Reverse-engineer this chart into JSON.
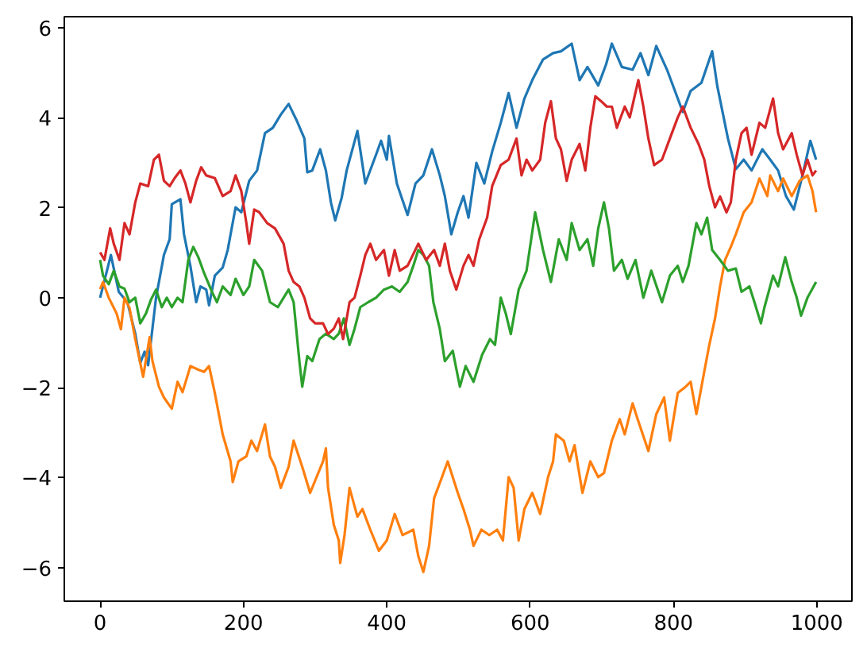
{
  "chart_data": {
    "type": "line",
    "xlim": [
      -50,
      1049
    ],
    "ylim": [
      -6.75,
      6.25
    ],
    "xticks": [
      0,
      200,
      400,
      600,
      800,
      1000
    ],
    "yticks": [
      {
        "value": -6,
        "label": "−6"
      },
      {
        "value": -4,
        "label": "−4"
      },
      {
        "value": -2,
        "label": "−2"
      },
      0,
      2,
      4,
      6
    ],
    "grid": false,
    "line_style": "solid",
    "series": [
      {
        "color": "#1f77b4",
        "x": [
          0,
          15,
          26,
          38,
          49,
          56,
          62,
          67,
          78,
          89,
          97,
          100,
          112,
          117,
          126,
          134,
          140,
          148,
          152,
          160,
          171,
          178,
          189,
          197,
          208,
          219,
          230,
          241,
          252,
          263,
          274,
          285,
          289,
          296,
          307,
          315,
          322,
          328,
          337,
          344,
          359,
          370,
          385,
          392,
          400,
          403,
          414,
          429,
          440,
          451,
          463,
          474,
          481,
          490,
          499,
          507,
          514,
          525,
          536,
          547,
          559,
          570,
          581,
          592,
          603,
          618,
          632,
          643,
          658,
          669,
          680,
          695,
          706,
          714,
          728,
          743,
          754,
          765,
          776,
          791,
          806,
          813,
          824,
          839,
          854,
          861,
          876,
          887,
          898,
          909,
          924,
          935,
          946,
          957,
          968,
          980,
          991,
          999
        ],
        "values": [
          0.0,
          0.95,
          0.13,
          -0.1,
          -0.8,
          -1.45,
          -1.2,
          -1.5,
          0.0,
          0.95,
          1.3,
          2.08,
          2.19,
          1.41,
          0.7,
          -0.1,
          0.25,
          0.18,
          -0.17,
          0.49,
          0.67,
          1.06,
          2.01,
          1.9,
          2.6,
          2.83,
          3.66,
          3.78,
          4.07,
          4.31,
          3.95,
          3.54,
          2.79,
          2.83,
          3.3,
          2.83,
          2.12,
          1.72,
          2.22,
          2.83,
          3.71,
          2.54,
          3.18,
          3.49,
          3.07,
          3.6,
          2.54,
          1.84,
          2.54,
          2.72,
          3.3,
          2.72,
          2.26,
          1.41,
          1.9,
          2.26,
          1.78,
          3.0,
          2.54,
          3.25,
          3.89,
          4.55,
          3.78,
          4.43,
          4.84,
          5.3,
          5.44,
          5.48,
          5.65,
          4.84,
          5.13,
          4.72,
          5.19,
          5.65,
          5.13,
          5.07,
          5.44,
          4.95,
          5.6,
          5.07,
          4.43,
          4.13,
          4.6,
          4.78,
          5.48,
          4.72,
          3.54,
          2.86,
          3.07,
          2.83,
          3.3,
          3.07,
          2.83,
          2.26,
          1.96,
          2.72,
          3.49,
          3.07
        ]
      },
      {
        "color": "#ff7f0e",
        "x": [
          0,
          4,
          12,
          23,
          29,
          34,
          41,
          49,
          60,
          69,
          73,
          82,
          89,
          100,
          108,
          115,
          126,
          137,
          145,
          152,
          160,
          171,
          182,
          185,
          193,
          204,
          211,
          219,
          230,
          237,
          244,
          252,
          263,
          270,
          282,
          293,
          302,
          311,
          315,
          318,
          326,
          333,
          335,
          341,
          348,
          359,
          366,
          377,
          389,
          400,
          411,
          422,
          437,
          444,
          451,
          459,
          466,
          477,
          485,
          492,
          499,
          507,
          516,
          521,
          532,
          543,
          554,
          562,
          570,
          577,
          584,
          592,
          603,
          614,
          625,
          632,
          636,
          647,
          655,
          662,
          673,
          684,
          695,
          703,
          714,
          725,
          732,
          743,
          750,
          765,
          776,
          787,
          795,
          806,
          817,
          824,
          832,
          843,
          850,
          858,
          865,
          872,
          880,
          887,
          898,
          909,
          920,
          931,
          935,
          946,
          953,
          965,
          976,
          987,
          994,
          999
        ],
        "values": [
          0.19,
          0.35,
          0.0,
          -0.35,
          -0.7,
          0.0,
          -0.23,
          -0.92,
          -1.76,
          -0.88,
          -1.41,
          -1.98,
          -2.22,
          -2.47,
          -1.87,
          -2.1,
          -1.52,
          -1.6,
          -1.65,
          -1.52,
          -2.12,
          -3.04,
          -3.64,
          -4.1,
          -3.64,
          -3.53,
          -3.18,
          -3.41,
          -2.82,
          -3.53,
          -3.76,
          -4.23,
          -3.76,
          -3.18,
          -3.76,
          -4.34,
          -3.99,
          -3.64,
          -3.35,
          -4.23,
          -5.05,
          -5.4,
          -5.9,
          -5.28,
          -4.23,
          -4.87,
          -4.7,
          -5.16,
          -5.63,
          -5.4,
          -4.81,
          -5.28,
          -5.16,
          -5.75,
          -6.1,
          -5.52,
          -4.46,
          -3.99,
          -3.64,
          -3.99,
          -4.34,
          -4.7,
          -5.16,
          -5.52,
          -5.16,
          -5.28,
          -5.16,
          -5.4,
          -3.99,
          -4.23,
          -5.4,
          -4.7,
          -4.34,
          -4.81,
          -3.99,
          -3.64,
          -3.04,
          -3.18,
          -3.64,
          -3.28,
          -4.34,
          -3.64,
          -3.99,
          -3.9,
          -3.18,
          -2.7,
          -3.04,
          -2.35,
          -2.7,
          -3.41,
          -2.59,
          -2.22,
          -3.18,
          -2.12,
          -1.98,
          -1.87,
          -2.59,
          -1.64,
          -1.05,
          -0.46,
          0.25,
          0.84,
          1.13,
          1.41,
          1.9,
          2.12,
          2.65,
          2.26,
          2.72,
          2.37,
          2.65,
          2.26,
          2.6,
          2.72,
          2.37,
          1.9
        ]
      },
      {
        "color": "#2ca02c",
        "x": [
          0,
          4,
          12,
          19,
          27,
          34,
          41,
          49,
          56,
          64,
          71,
          78,
          86,
          93,
          100,
          108,
          115,
          123,
          130,
          137,
          145,
          156,
          163,
          171,
          182,
          189,
          200,
          208,
          215,
          226,
          237,
          248,
          256,
          263,
          270,
          278,
          282,
          289,
          296,
          306,
          315,
          326,
          333,
          340,
          348,
          355,
          363,
          374,
          385,
          396,
          407,
          418,
          429,
          437,
          444,
          451,
          459,
          465,
          474,
          481,
          492,
          502,
          510,
          521,
          533,
          544,
          551,
          559,
          566,
          573,
          584,
          595,
          607,
          618,
          629,
          640,
          651,
          658,
          669,
          680,
          688,
          695,
          703,
          710,
          717,
          728,
          736,
          747,
          758,
          769,
          784,
          795,
          806,
          813,
          821,
          832,
          839,
          847,
          854,
          865,
          876,
          887,
          895,
          906,
          913,
          922,
          927,
          939,
          946,
          956,
          965,
          972,
          978,
          987,
          999
        ],
        "values": [
          0.84,
          0.49,
          0.3,
          0.6,
          0.25,
          0.2,
          -0.1,
          0.0,
          -0.57,
          -0.35,
          -0.04,
          0.18,
          -0.21,
          0.0,
          -0.21,
          0.0,
          -0.1,
          0.84,
          1.13,
          0.9,
          0.55,
          0.13,
          -0.1,
          0.25,
          0.06,
          0.42,
          0.06,
          0.25,
          0.84,
          0.6,
          -0.1,
          -0.21,
          0.0,
          0.18,
          -0.1,
          -1.41,
          -1.98,
          -1.3,
          -1.41,
          -0.92,
          -0.8,
          -0.92,
          -0.8,
          -0.46,
          -1.05,
          -0.69,
          -0.21,
          -0.1,
          0.0,
          0.18,
          0.25,
          0.13,
          0.35,
          0.71,
          1.06,
          0.95,
          0.71,
          -0.1,
          -0.7,
          -1.41,
          -1.18,
          -1.98,
          -1.52,
          -1.87,
          -1.27,
          -0.92,
          -1.05,
          0.0,
          -0.35,
          -0.81,
          0.18,
          0.6,
          1.9,
          1.06,
          0.35,
          1.3,
          0.84,
          1.66,
          1.06,
          1.3,
          0.71,
          1.54,
          2.12,
          1.54,
          0.6,
          0.84,
          0.42,
          0.84,
          0.0,
          0.6,
          -0.1,
          0.49,
          0.71,
          0.35,
          0.71,
          1.66,
          1.41,
          1.78,
          1.06,
          0.84,
          0.6,
          0.65,
          0.13,
          0.25,
          -0.1,
          -0.57,
          -0.21,
          0.49,
          0.25,
          0.9,
          0.35,
          0.0,
          -0.4,
          0.0,
          0.35
        ]
      },
      {
        "color": "#d62728",
        "x": [
          0,
          6,
          14,
          19,
          27,
          34,
          41,
          49,
          56,
          67,
          75,
          82,
          89,
          97,
          104,
          112,
          119,
          126,
          134,
          141,
          148,
          160,
          171,
          182,
          189,
          197,
          204,
          208,
          215,
          222,
          233,
          244,
          256,
          263,
          270,
          278,
          285,
          293,
          300,
          311,
          318,
          326,
          333,
          339,
          348,
          355,
          363,
          370,
          377,
          385,
          396,
          403,
          411,
          418,
          429,
          444,
          455,
          466,
          474,
          481,
          488,
          497,
          507,
          514,
          521,
          529,
          540,
          547,
          559,
          570,
          581,
          588,
          595,
          603,
          614,
          621,
          629,
          636,
          643,
          651,
          658,
          669,
          677,
          684,
          691,
          699,
          707,
          714,
          721,
          732,
          739,
          751,
          758,
          765,
          773,
          784,
          795,
          806,
          813,
          824,
          835,
          843,
          850,
          858,
          865,
          874,
          880,
          887,
          895,
          902,
          909,
          920,
          928,
          939,
          946,
          953,
          965,
          972,
          980,
          987,
          994,
          999
        ],
        "values": [
          1.01,
          0.84,
          1.54,
          1.2,
          0.84,
          1.66,
          1.41,
          2.12,
          2.54,
          2.48,
          3.07,
          3.18,
          2.6,
          2.48,
          2.66,
          2.83,
          2.54,
          2.12,
          2.6,
          2.9,
          2.72,
          2.66,
          2.26,
          2.37,
          2.72,
          2.37,
          1.66,
          1.2,
          1.96,
          1.9,
          1.66,
          1.54,
          1.2,
          0.6,
          0.35,
          0.25,
          0.0,
          -0.46,
          -0.57,
          -0.57,
          -0.81,
          -0.69,
          -0.46,
          -0.92,
          -0.1,
          0.0,
          0.49,
          0.95,
          1.2,
          0.84,
          1.06,
          0.49,
          1.06,
          0.6,
          0.71,
          1.2,
          0.84,
          1.06,
          0.71,
          1.2,
          0.6,
          0.18,
          0.71,
          0.95,
          0.71,
          1.3,
          1.78,
          2.48,
          2.95,
          3.07,
          3.54,
          2.72,
          3.07,
          2.83,
          3.07,
          3.89,
          4.37,
          3.54,
          3.3,
          2.6,
          3.07,
          3.42,
          2.83,
          3.78,
          4.48,
          4.37,
          4.25,
          4.25,
          3.78,
          4.25,
          4.01,
          4.84,
          4.25,
          3.54,
          2.95,
          3.07,
          3.54,
          4.01,
          4.25,
          3.78,
          3.42,
          3.07,
          2.48,
          2.01,
          2.25,
          1.9,
          2.12,
          3.07,
          3.66,
          3.78,
          3.18,
          3.89,
          3.78,
          4.43,
          3.66,
          3.3,
          3.66,
          3.18,
          2.72,
          3.07,
          2.72,
          2.83
        ]
      }
    ]
  }
}
